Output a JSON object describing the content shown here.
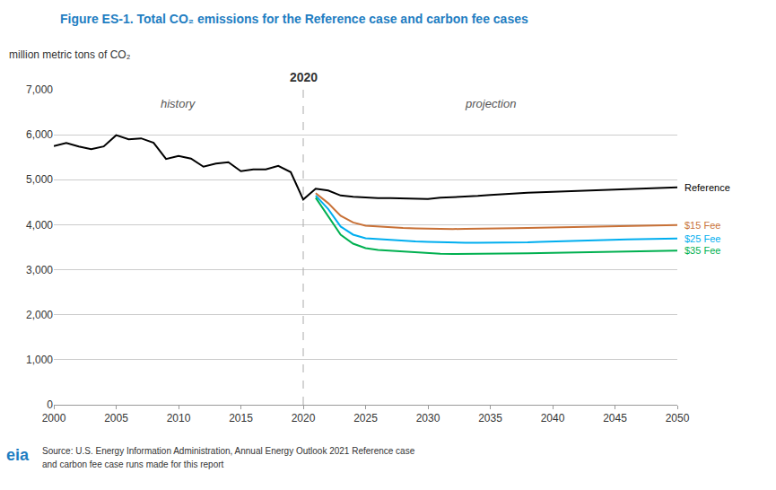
{
  "chart_data": {
    "type": "line",
    "title": "Figure ES-1. Total CO₂ emissions for the Reference case and carbon fee cases",
    "title_color": "#1F7EC2",
    "ylabel": "million metric tons of CO₂",
    "xlim": [
      2000,
      2050
    ],
    "xticks": [
      2000,
      2005,
      2010,
      2015,
      2020,
      2025,
      2030,
      2035,
      2040,
      2045,
      2050
    ],
    "ylim": [
      0,
      7000
    ],
    "yticks": [
      0,
      {
        "value": 1000,
        "label": "1,000"
      },
      {
        "value": 2000,
        "label": "2,000"
      },
      {
        "value": 3000,
        "label": "3,000"
      },
      {
        "value": 4000,
        "label": "4,000"
      },
      {
        "value": 5000,
        "label": "5,000"
      },
      {
        "value": 6000,
        "label": "6,000"
      },
      {
        "value": 7000,
        "label": "7,000"
      }
    ],
    "grid": "y",
    "vlines": [
      2020
    ],
    "annotations": [
      {
        "text": "2020",
        "x": 2020
      },
      {
        "text": "history",
        "x": 2010
      },
      {
        "text": "projection",
        "x": 2035
      }
    ],
    "source": [
      "Source: U.S. Energy Information Administration, Annual Energy Outlook 2021 Reference case",
      "and carbon fee case runs made for this report"
    ],
    "logo": "eia",
    "series": [
      {
        "name": "Reference",
        "color": "#000000",
        "x": [
          2000,
          2001,
          2002,
          2003,
          2004,
          2005,
          2006,
          2007,
          2008,
          2009,
          2010,
          2011,
          2012,
          2013,
          2014,
          2015,
          2016,
          2017,
          2018,
          2019,
          2020,
          2021,
          2022,
          2023,
          2024,
          2025,
          2026,
          2027,
          2028,
          2029,
          2030,
          2031,
          2032,
          2033,
          2034,
          2035,
          2036,
          2037,
          2038,
          2039,
          2040,
          2041,
          2042,
          2043,
          2044,
          2045,
          2046,
          2047,
          2048,
          2049,
          2050
        ],
        "values": [
          5750,
          5820,
          5740,
          5680,
          5740,
          5990,
          5900,
          5920,
          5820,
          5460,
          5530,
          5470,
          5290,
          5360,
          5390,
          5190,
          5230,
          5230,
          5310,
          5170,
          4560,
          4800,
          4760,
          4650,
          4620,
          4600,
          4590,
          4590,
          4580,
          4570,
          4570,
          4600,
          4610,
          4620,
          4640,
          4660,
          4680,
          4700,
          4710,
          4720,
          4730,
          4740,
          4750,
          4760,
          4770,
          4780,
          4790,
          4800,
          4810,
          4820,
          4830
        ]
      },
      {
        "name": "$15 Fee",
        "color": "#C87137",
        "x": [
          2021,
          2022,
          2023,
          2024,
          2025,
          2026,
          2027,
          2028,
          2029,
          2030,
          2031,
          2032,
          2033,
          2034,
          2035,
          2036,
          2037,
          2038,
          2039,
          2040,
          2041,
          2042,
          2043,
          2044,
          2045,
          2046,
          2047,
          2048,
          2049,
          2050
        ],
        "values": [
          4700,
          4480,
          4200,
          4050,
          3980,
          3960,
          3940,
          3930,
          3920,
          3910,
          3900,
          3905,
          3910,
          3910,
          3915,
          3920,
          3925,
          3930,
          3935,
          3940,
          3950,
          3955,
          3960,
          3965,
          3970,
          3975,
          3980,
          3985,
          3990,
          3995
        ]
      },
      {
        "name": "$25 Fee",
        "color": "#00AEEF",
        "x": [
          2021,
          2022,
          2023,
          2024,
          2025,
          2026,
          2027,
          2028,
          2029,
          2030,
          2031,
          2032,
          2033,
          2034,
          2035,
          2036,
          2037,
          2038,
          2039,
          2040,
          2041,
          2042,
          2043,
          2044,
          2045,
          2046,
          2047,
          2048,
          2049,
          2050
        ],
        "values": [
          4650,
          4350,
          3960,
          3780,
          3700,
          3680,
          3660,
          3640,
          3630,
          3620,
          3610,
          3605,
          3600,
          3600,
          3600,
          3600,
          3605,
          3610,
          3620,
          3630,
          3640,
          3650,
          3660,
          3665,
          3670,
          3675,
          3680,
          3685,
          3690,
          3695
        ]
      },
      {
        "name": "$35 Fee",
        "color": "#00B050",
        "x": [
          2021,
          2022,
          2023,
          2024,
          2025,
          2026,
          2027,
          2028,
          2029,
          2030,
          2031,
          2032,
          2033,
          2034,
          2035,
          2036,
          2037,
          2038,
          2039,
          2040,
          2041,
          2042,
          2043,
          2044,
          2045,
          2046,
          2047,
          2048,
          2049,
          2050
        ],
        "values": [
          4600,
          4200,
          3780,
          3580,
          3480,
          3440,
          3420,
          3400,
          3380,
          3360,
          3355,
          3350,
          3350,
          3350,
          3355,
          3358,
          3360,
          3365,
          3370,
          3375,
          3380,
          3385,
          3390,
          3395,
          3400,
          3405,
          3410,
          3415,
          3420,
          3425
        ]
      }
    ]
  }
}
